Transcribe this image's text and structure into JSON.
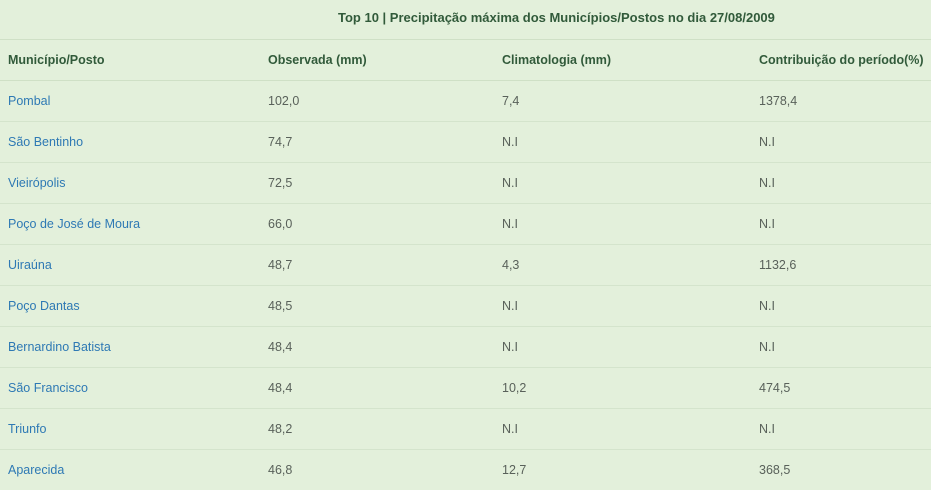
{
  "title": "Top 10 | Precipitação máxima dos Municípios/Postos no dia 27/08/2009",
  "columns": [
    "Município/Posto",
    "Observada (mm)",
    "Climatologia (mm)",
    "Contribuição do período(%)"
  ],
  "rows": [
    {
      "municipio": "Pombal",
      "observada": "102,0",
      "climatologia": "7,4",
      "contribuicao": "1378,4"
    },
    {
      "municipio": "São Bentinho",
      "observada": "74,7",
      "climatologia": "N.I",
      "contribuicao": "N.I"
    },
    {
      "municipio": "Vieirópolis",
      "observada": "72,5",
      "climatologia": "N.I",
      "contribuicao": "N.I"
    },
    {
      "municipio": "Poço de José de Moura",
      "observada": "66,0",
      "climatologia": "N.I",
      "contribuicao": "N.I"
    },
    {
      "municipio": "Uiraúna",
      "observada": "48,7",
      "climatologia": "4,3",
      "contribuicao": "1132,6"
    },
    {
      "municipio": "Poço Dantas",
      "observada": "48,5",
      "climatologia": "N.I",
      "contribuicao": "N.I"
    },
    {
      "municipio": "Bernardino Batista",
      "observada": "48,4",
      "climatologia": "N.I",
      "contribuicao": "N.I"
    },
    {
      "municipio": "São Francisco",
      "observada": "48,4",
      "climatologia": "10,2",
      "contribuicao": "474,5"
    },
    {
      "municipio": "Triunfo",
      "observada": "48,2",
      "climatologia": "N.I",
      "contribuicao": "N.I"
    },
    {
      "municipio": "Aparecida",
      "observada": "46,8",
      "climatologia": "12,7",
      "contribuicao": "368,5"
    }
  ]
}
